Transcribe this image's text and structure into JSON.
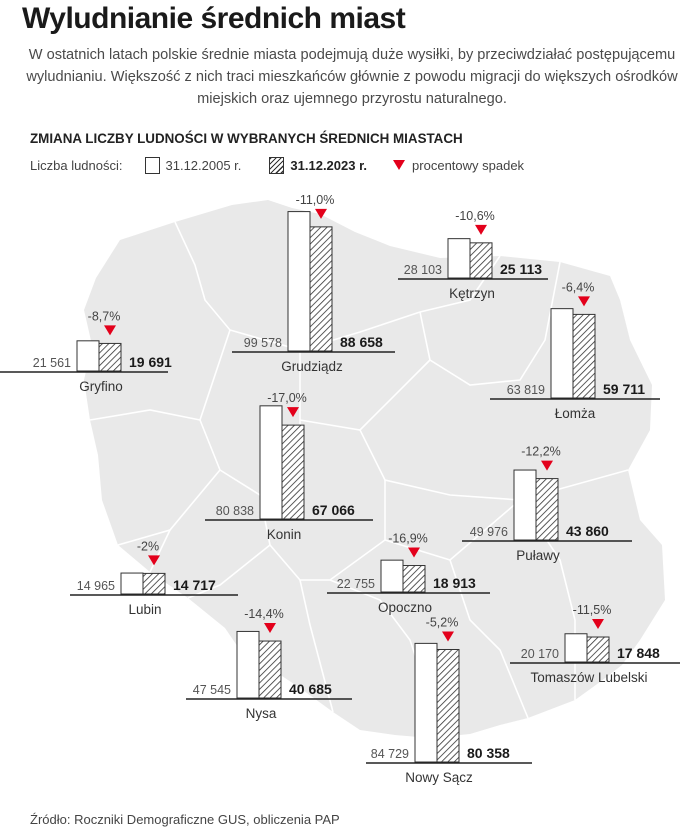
{
  "title": "Wyludnianie średnich miast",
  "intro": "W ostatnich latach polskie średnie miasta podejmują duże wysiłki, by przeciwdziałać postępującemu wyludnianiu. Większość z nich traci mieszkańców głównie z powodu migracji do większych ośrodków miejskich oraz ujemnego przyrostu naturalnego.",
  "subtitle": "ZMIANA LICZBY LUDNOŚCI W WYBRANYCH ŚREDNICH MIASTACH",
  "legend": {
    "label": "Liczba ludności:",
    "year_2005": "31.12.2005 r.",
    "year_2023": "31.12.2023 r.",
    "drop": "procentowy spadek"
  },
  "source": "Źródło: Roczniki Demograficzne GUS, obliczenia PAP",
  "colors": {
    "map_fill": "#e9e9e9",
    "border": "#ffffff",
    "bar_stroke": "#333333",
    "drop_triangle": "#e3001b",
    "text": "#222222"
  },
  "chart_data": {
    "type": "bar",
    "series": [
      {
        "name": "31.12.2005 r."
      },
      {
        "name": "31.12.2023 r."
      }
    ],
    "cities": [
      {
        "name": "Gryfino",
        "v2005": 21561,
        "v2023": 19691,
        "v2005_label": "21 561",
        "v2023_label": "19 691",
        "change": "-8,7%"
      },
      {
        "name": "Grudziądz",
        "v2005": 99578,
        "v2023": 88658,
        "v2005_label": "99 578",
        "v2023_label": "88 658",
        "change": "-11,0%"
      },
      {
        "name": "Kętrzyn",
        "v2005": 28103,
        "v2023": 25113,
        "v2005_label": "28 103",
        "v2023_label": "25 113",
        "change": "-10,6%"
      },
      {
        "name": "Łomża",
        "v2005": 63819,
        "v2023": 59711,
        "v2005_label": "63 819",
        "v2023_label": "59 711",
        "change": "-6,4%"
      },
      {
        "name": "Konin",
        "v2005": 80838,
        "v2023": 67066,
        "v2005_label": "80 838",
        "v2023_label": "67 066",
        "change": "-17,0%"
      },
      {
        "name": "Lubin",
        "v2005": 14965,
        "v2023": 14717,
        "v2005_label": "14 965",
        "v2023_label": "14 717",
        "change": "-2%"
      },
      {
        "name": "Puławy",
        "v2005": 49976,
        "v2023": 43860,
        "v2005_label": "49 976",
        "v2023_label": "43 860",
        "change": "-12,2%"
      },
      {
        "name": "Opoczno",
        "v2005": 22755,
        "v2023": 18913,
        "v2005_label": "22 755",
        "v2023_label": "18 913",
        "change": "-16,9%"
      },
      {
        "name": "Nysa",
        "v2005": 47545,
        "v2023": 40685,
        "v2005_label": "47 545",
        "v2023_label": "40 685",
        "change": "-14,4%"
      },
      {
        "name": "Tomaszów Lubelski",
        "v2005": 20170,
        "v2023": 17848,
        "v2005_label": "20 170",
        "v2023_label": "17 848",
        "change": "-11,5%"
      },
      {
        "name": "Nowy Sącz",
        "v2005": 84729,
        "v2023": 80358,
        "v2005_label": "84 729",
        "v2023_label": "80 358",
        "change": "-5,2%"
      }
    ]
  }
}
